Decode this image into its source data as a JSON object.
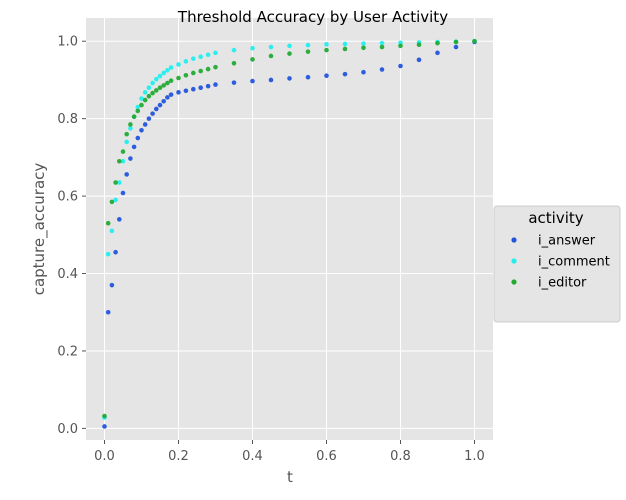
{
  "chart_data": {
    "type": "scatter",
    "title": "Threshold Accuracy by User Activity",
    "xlabel": "t",
    "ylabel": "capture_accuracy",
    "xlim": [
      -0.05,
      1.05
    ],
    "ylim": [
      -0.03,
      1.06
    ],
    "xticks": [
      "0.0",
      "0.2",
      "0.4",
      "0.6",
      "0.8",
      "1.0"
    ],
    "xtick_values": [
      0.0,
      0.2,
      0.4,
      0.6,
      0.8,
      1.0
    ],
    "yticks": [
      "0.0",
      "0.2",
      "0.4",
      "0.6",
      "0.8",
      "1.0"
    ],
    "ytick_values": [
      0.0,
      0.2,
      0.4,
      0.6,
      0.8,
      1.0
    ],
    "grid": true,
    "legend": {
      "title": "activity",
      "placement": "center-right outside"
    },
    "series": [
      {
        "name": "i_answer",
        "color": "#2255dd",
        "points": [
          [
            0.0,
            0.005
          ],
          [
            0.01,
            0.3
          ],
          [
            0.02,
            0.37
          ],
          [
            0.03,
            0.455
          ],
          [
            0.04,
            0.54
          ],
          [
            0.05,
            0.608
          ],
          [
            0.06,
            0.656
          ],
          [
            0.07,
            0.697
          ],
          [
            0.08,
            0.727
          ],
          [
            0.09,
            0.75
          ],
          [
            0.1,
            0.77
          ],
          [
            0.11,
            0.785
          ],
          [
            0.12,
            0.8
          ],
          [
            0.13,
            0.813
          ],
          [
            0.14,
            0.825
          ],
          [
            0.15,
            0.835
          ],
          [
            0.16,
            0.845
          ],
          [
            0.17,
            0.855
          ],
          [
            0.18,
            0.862
          ],
          [
            0.2,
            0.868
          ],
          [
            0.22,
            0.872
          ],
          [
            0.24,
            0.876
          ],
          [
            0.26,
            0.88
          ],
          [
            0.28,
            0.884
          ],
          [
            0.3,
            0.888
          ],
          [
            0.35,
            0.893
          ],
          [
            0.4,
            0.897
          ],
          [
            0.45,
            0.9
          ],
          [
            0.5,
            0.904
          ],
          [
            0.55,
            0.907
          ],
          [
            0.6,
            0.911
          ],
          [
            0.65,
            0.915
          ],
          [
            0.7,
            0.92
          ],
          [
            0.75,
            0.927
          ],
          [
            0.8,
            0.936
          ],
          [
            0.85,
            0.952
          ],
          [
            0.9,
            0.97
          ],
          [
            0.95,
            0.985
          ],
          [
            1.0,
            0.998
          ]
        ]
      },
      {
        "name": "i_comment",
        "color": "#22eeee",
        "points": [
          [
            0.0,
            0.028
          ],
          [
            0.01,
            0.45
          ],
          [
            0.02,
            0.51
          ],
          [
            0.03,
            0.59
          ],
          [
            0.04,
            0.635
          ],
          [
            0.05,
            0.69
          ],
          [
            0.06,
            0.74
          ],
          [
            0.07,
            0.775
          ],
          [
            0.08,
            0.805
          ],
          [
            0.09,
            0.83
          ],
          [
            0.1,
            0.852
          ],
          [
            0.11,
            0.868
          ],
          [
            0.12,
            0.88
          ],
          [
            0.13,
            0.892
          ],
          [
            0.14,
            0.902
          ],
          [
            0.15,
            0.91
          ],
          [
            0.16,
            0.918
          ],
          [
            0.17,
            0.925
          ],
          [
            0.18,
            0.932
          ],
          [
            0.2,
            0.94
          ],
          [
            0.22,
            0.948
          ],
          [
            0.24,
            0.955
          ],
          [
            0.26,
            0.96
          ],
          [
            0.28,
            0.965
          ],
          [
            0.3,
            0.97
          ],
          [
            0.35,
            0.977
          ],
          [
            0.4,
            0.982
          ],
          [
            0.45,
            0.985
          ],
          [
            0.5,
            0.988
          ],
          [
            0.55,
            0.99
          ],
          [
            0.6,
            0.992
          ],
          [
            0.65,
            0.993
          ],
          [
            0.7,
            0.994
          ],
          [
            0.75,
            0.995
          ],
          [
            0.8,
            0.996
          ],
          [
            0.85,
            0.997
          ],
          [
            0.9,
            0.998
          ],
          [
            0.95,
            0.999
          ],
          [
            1.0,
            1.0
          ]
        ]
      },
      {
        "name": "i_editor",
        "color": "#22aa33",
        "points": [
          [
            0.0,
            0.032
          ],
          [
            0.01,
            0.53
          ],
          [
            0.02,
            0.585
          ],
          [
            0.03,
            0.635
          ],
          [
            0.04,
            0.69
          ],
          [
            0.05,
            0.715
          ],
          [
            0.06,
            0.76
          ],
          [
            0.07,
            0.785
          ],
          [
            0.08,
            0.805
          ],
          [
            0.09,
            0.82
          ],
          [
            0.1,
            0.835
          ],
          [
            0.11,
            0.848
          ],
          [
            0.12,
            0.858
          ],
          [
            0.13,
            0.866
          ],
          [
            0.14,
            0.873
          ],
          [
            0.15,
            0.88
          ],
          [
            0.16,
            0.886
          ],
          [
            0.17,
            0.892
          ],
          [
            0.18,
            0.898
          ],
          [
            0.2,
            0.905
          ],
          [
            0.22,
            0.912
          ],
          [
            0.24,
            0.918
          ],
          [
            0.26,
            0.923
          ],
          [
            0.28,
            0.928
          ],
          [
            0.3,
            0.933
          ],
          [
            0.35,
            0.943
          ],
          [
            0.4,
            0.953
          ],
          [
            0.45,
            0.962
          ],
          [
            0.5,
            0.968
          ],
          [
            0.55,
            0.973
          ],
          [
            0.6,
            0.977
          ],
          [
            0.65,
            0.98
          ],
          [
            0.7,
            0.983
          ],
          [
            0.75,
            0.985
          ],
          [
            0.8,
            0.988
          ],
          [
            0.85,
            0.991
          ],
          [
            0.9,
            0.995
          ],
          [
            0.95,
            0.998
          ],
          [
            1.0,
            1.0
          ]
        ]
      }
    ]
  }
}
